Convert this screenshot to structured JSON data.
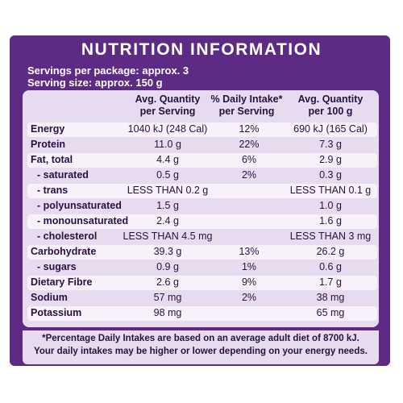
{
  "panel": {
    "title": "NUTRITION INFORMATION",
    "servings_per_package": "Servings per package: approx. 3",
    "serving_size": "Serving size: approx. 150 g"
  },
  "headers": {
    "avg_per_serving": [
      "Avg. Quantity",
      "per Serving"
    ],
    "daily_intake": [
      "% Daily Intake*",
      "per Serving"
    ],
    "avg_per_100g": [
      "Avg. Quantity",
      "per 100 g"
    ]
  },
  "rows": [
    {
      "label": "Energy",
      "per_serving": "1040 kJ (248 Cal)",
      "daily_intake": "12%",
      "per_100g": "690 kJ (165 Cal)"
    },
    {
      "label": "Protein",
      "per_serving": "11.0 g",
      "daily_intake": "22%",
      "per_100g": "7.3 g"
    },
    {
      "label": "Fat, total",
      "per_serving": "4.4 g",
      "daily_intake": "6%",
      "per_100g": "2.9 g"
    },
    {
      "label": "- saturated",
      "per_serving": "0.5 g",
      "daily_intake": "2%",
      "per_100g": "0.3 g"
    },
    {
      "label": "- trans",
      "per_serving": "LESS THAN 0.2 g",
      "daily_intake": "",
      "per_100g": "LESS THAN 0.1 g"
    },
    {
      "label": "- polyunsaturated",
      "per_serving": "1.5 g",
      "daily_intake": "",
      "per_100g": "1.0 g"
    },
    {
      "label": "- monounsaturated",
      "per_serving": "2.4 g",
      "daily_intake": "",
      "per_100g": "1.6 g"
    },
    {
      "label": "- cholesterol",
      "per_serving": "LESS THAN 4.5 mg",
      "daily_intake": "",
      "per_100g": "LESS THAN 3 mg"
    },
    {
      "label": "Carbohydrate",
      "per_serving": "39.3 g",
      "daily_intake": "13%",
      "per_100g": "26.2 g"
    },
    {
      "label": "- sugars",
      "per_serving": "0.9 g",
      "daily_intake": "1%",
      "per_100g": "0.6 g"
    },
    {
      "label": "Dietary Fibre",
      "per_serving": "2.6 g",
      "daily_intake": "9%",
      "per_100g": "1.7 g"
    },
    {
      "label": "Sodium",
      "per_serving": "57 mg",
      "daily_intake": "2%",
      "per_100g": "38 mg"
    },
    {
      "label": "Potassium",
      "per_serving": "98 mg",
      "daily_intake": "",
      "per_100g": "65 mg"
    }
  ],
  "footnote": [
    "*Percentage Daily Intakes are based on an average adult diet of 8700 kJ.",
    "Your daily intakes may be higher or lower depending on your energy needs."
  ],
  "colors": {
    "packaging_purple": "#5d2a84",
    "panel_lavender": "#e7dcef",
    "row_highlight": "#f7f2fa",
    "text_dark": "#2a0f42"
  }
}
